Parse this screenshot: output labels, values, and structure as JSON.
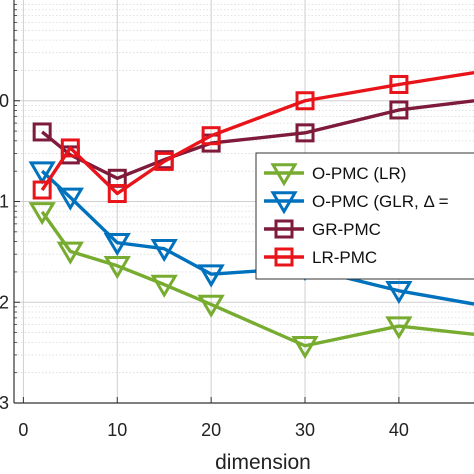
{
  "chart_data": {
    "type": "line",
    "xlabel": "dimension",
    "ylabel": "",
    "title": "",
    "xlim": [
      -1,
      48
    ],
    "ylim_log": [
      -3,
      1
    ],
    "y_scale": "log",
    "grid": true,
    "legend_position": "right",
    "x_ticks": [
      {
        "value": 0,
        "label": "0"
      },
      {
        "value": 10,
        "label": "10"
      },
      {
        "value": 20,
        "label": "20"
      },
      {
        "value": 30,
        "label": "30"
      },
      {
        "value": 40,
        "label": "40"
      }
    ],
    "y_ticks": [
      {
        "exp": 0,
        "label": "0"
      },
      {
        "exp": -1,
        "label": "1"
      },
      {
        "exp": -2,
        "label": "2"
      },
      {
        "exp": -3,
        "label": "3"
      }
    ],
    "series": [
      {
        "name": "O-PMC (LR)",
        "color": "#77ac30",
        "marker": "triangle-down",
        "x": [
          2,
          5,
          10,
          15,
          20,
          30,
          40,
          48
        ],
        "y": [
          0.079,
          0.032,
          0.023,
          0.015,
          0.0095,
          0.0037,
          0.0058,
          0.0048
        ]
      },
      {
        "name": "O-PMC (GLR, Δ =",
        "color": "#0072bd",
        "marker": "triangle-down",
        "x": [
          2,
          5,
          10,
          15,
          20,
          30,
          40,
          48
        ],
        "y": [
          0.2,
          0.11,
          0.039,
          0.034,
          0.019,
          0.022,
          0.013,
          0.0096
        ]
      },
      {
        "name": "GR-PMC",
        "color": "#7e1a3a",
        "marker": "square",
        "x": [
          2,
          5,
          10,
          15,
          20,
          30,
          40,
          48
        ],
        "y": [
          0.49,
          0.29,
          0.17,
          0.26,
          0.38,
          0.48,
          0.81,
          1.0
        ]
      },
      {
        "name": "LR-PMC",
        "color": "#e8141a",
        "marker": "square",
        "x": [
          2,
          5,
          10,
          15,
          20,
          30,
          40,
          48
        ],
        "y": [
          0.13,
          0.34,
          0.12,
          0.25,
          0.45,
          1.0,
          1.45,
          1.9
        ]
      }
    ]
  }
}
